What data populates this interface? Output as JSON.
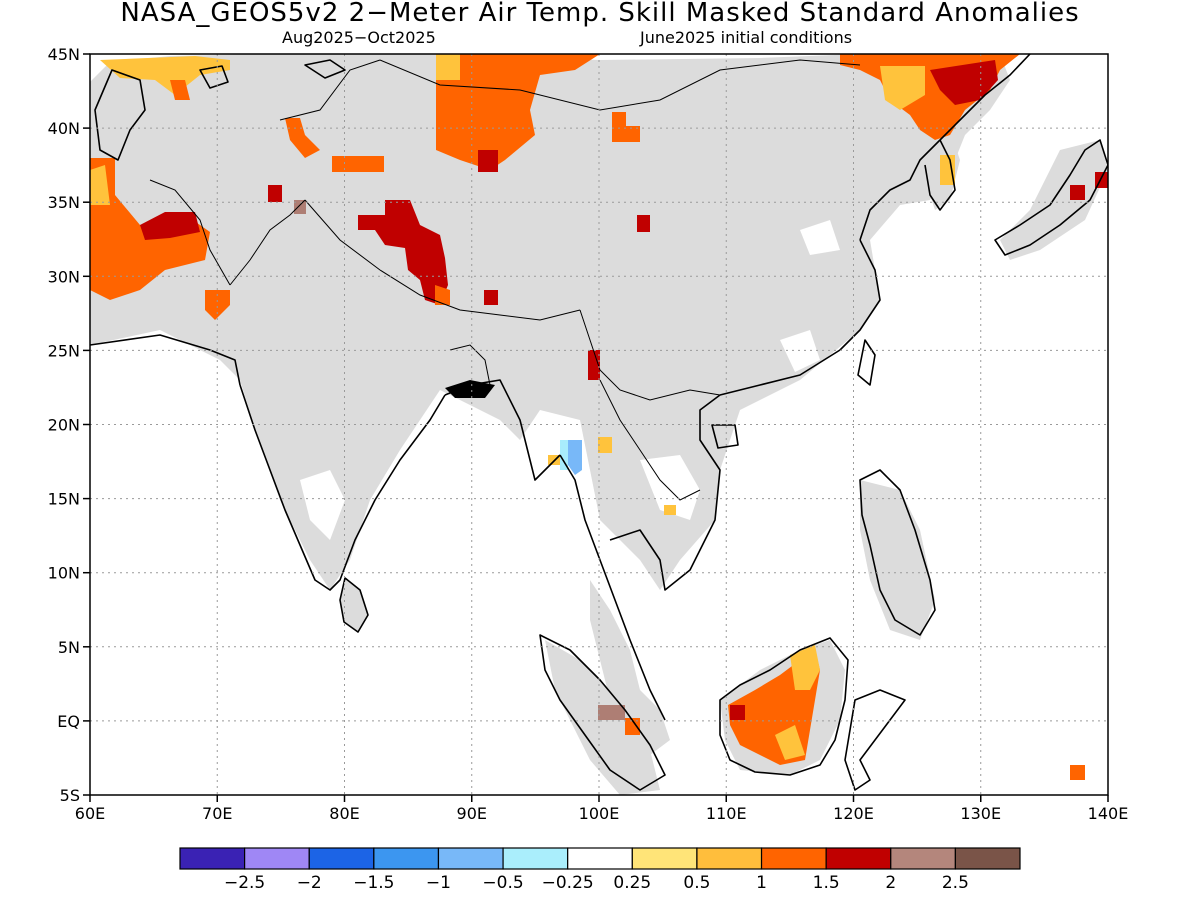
{
  "title": "NASA_GEOS5v2 2−Meter Air Temp. Skill Masked Standard Anomalies",
  "subtitle_left": "Aug2025−Oct2025",
  "subtitle_right": "June2025 initial conditions",
  "map": {
    "lon_range": [
      60,
      140
    ],
    "lat_range": [
      -5,
      45
    ],
    "lon_ticks": [
      {
        "value": 60,
        "label": "60E"
      },
      {
        "value": 70,
        "label": "70E"
      },
      {
        "value": 80,
        "label": "80E"
      },
      {
        "value": 90,
        "label": "90E"
      },
      {
        "value": 100,
        "label": "100E"
      },
      {
        "value": 110,
        "label": "110E"
      },
      {
        "value": 120,
        "label": "120E"
      },
      {
        "value": 130,
        "label": "130E"
      },
      {
        "value": 140,
        "label": "140E"
      }
    ],
    "lat_ticks": [
      {
        "value": 45,
        "label": "45N"
      },
      {
        "value": 40,
        "label": "40N"
      },
      {
        "value": 35,
        "label": "35N"
      },
      {
        "value": 30,
        "label": "30N"
      },
      {
        "value": 25,
        "label": "25N"
      },
      {
        "value": 20,
        "label": "20N"
      },
      {
        "value": 15,
        "label": "15N"
      },
      {
        "value": 10,
        "label": "10N"
      },
      {
        "value": 5,
        "label": "5N"
      },
      {
        "value": 0,
        "label": "EQ"
      },
      {
        "value": -5,
        "label": "5S"
      }
    ],
    "colors": {
      "masked": "#dcdcdc",
      "level_0_5": "#ffc33c",
      "level_1": "#ff6400",
      "level_1_5": "#c00000",
      "level_2": "#ae7e74",
      "neg_0_25": "#a8ecfc",
      "neg_0_5": "#78b8f8"
    }
  },
  "colorbar": {
    "colors": [
      "#3a22b4",
      "#9f87f5",
      "#1c64e6",
      "#3c96f0",
      "#78b8f8",
      "#aaeefc",
      "#ffffff",
      "#ffe478",
      "#ffbe3c",
      "#ff6400",
      "#c00000",
      "#b4867c",
      "#7a5448"
    ],
    "labels": [
      "−2.5",
      "−2",
      "−1.5",
      "−1",
      "−0.5",
      "−0.25",
      "0.25",
      "0.5",
      "1",
      "1.5",
      "2",
      "2.5"
    ]
  }
}
